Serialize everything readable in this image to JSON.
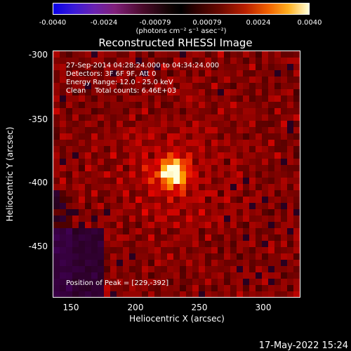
{
  "colorbar": {
    "ticks": [
      "-0.0040",
      "-0.0024",
      "-0.00079",
      "0.00079",
      "0.0024",
      "0.0040"
    ],
    "units": "(photons cm⁻² s⁻¹ asec⁻²)"
  },
  "title": "Reconstructed RHESSI Image",
  "info": {
    "time_range": "27-Sep-2014 04:28:24.000 to 04:34:24.000",
    "detectors": "Detectors: 3F 6F 9F, Att 0",
    "energy": "Energy Range: 12.0 - 25.0 keV",
    "clean": "Clean    Total counts: 6.46E+03",
    "peak": "Position of Peak = [229,-392]"
  },
  "axes": {
    "xlabel": "Heliocentric X (arcsec)",
    "ylabel": "Heliocentric Y (arcsec)",
    "xticks": [
      "150",
      "200",
      "250",
      "300"
    ],
    "yticks": [
      "-300",
      "-350",
      "-400",
      "-450"
    ],
    "xrange": [
      136,
      328
    ],
    "yrange": [
      -489,
      -297
    ]
  },
  "peak_position": [
    229,
    -392
  ],
  "timestamp": "17-May-2022 15:24"
}
